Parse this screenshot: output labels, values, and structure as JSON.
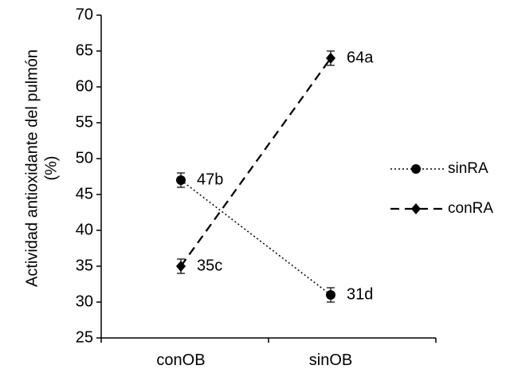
{
  "chart_data": {
    "type": "line",
    "title": "",
    "xlabel": "",
    "ylabel_line1": "Actividad antioxidante del pulmón",
    "ylabel_line2": "(%)",
    "categories": [
      "conOB",
      "sinOB"
    ],
    "ylim": [
      25,
      70
    ],
    "yticks": [
      25,
      30,
      35,
      40,
      45,
      50,
      55,
      60,
      65,
      70
    ],
    "grid": false,
    "legend_position": "right",
    "series": [
      {
        "name": "sinRA",
        "values": [
          47,
          31
        ],
        "errors": [
          1,
          1
        ],
        "labels": [
          "47b",
          "31d"
        ],
        "line_style": "dotted",
        "marker": "circle",
        "color": "#000000"
      },
      {
        "name": "conRA",
        "values": [
          35,
          64
        ],
        "errors": [
          1,
          1
        ],
        "labels": [
          "35c",
          "64a"
        ],
        "line_style": "dashed",
        "marker": "diamond",
        "color": "#000000"
      }
    ]
  }
}
